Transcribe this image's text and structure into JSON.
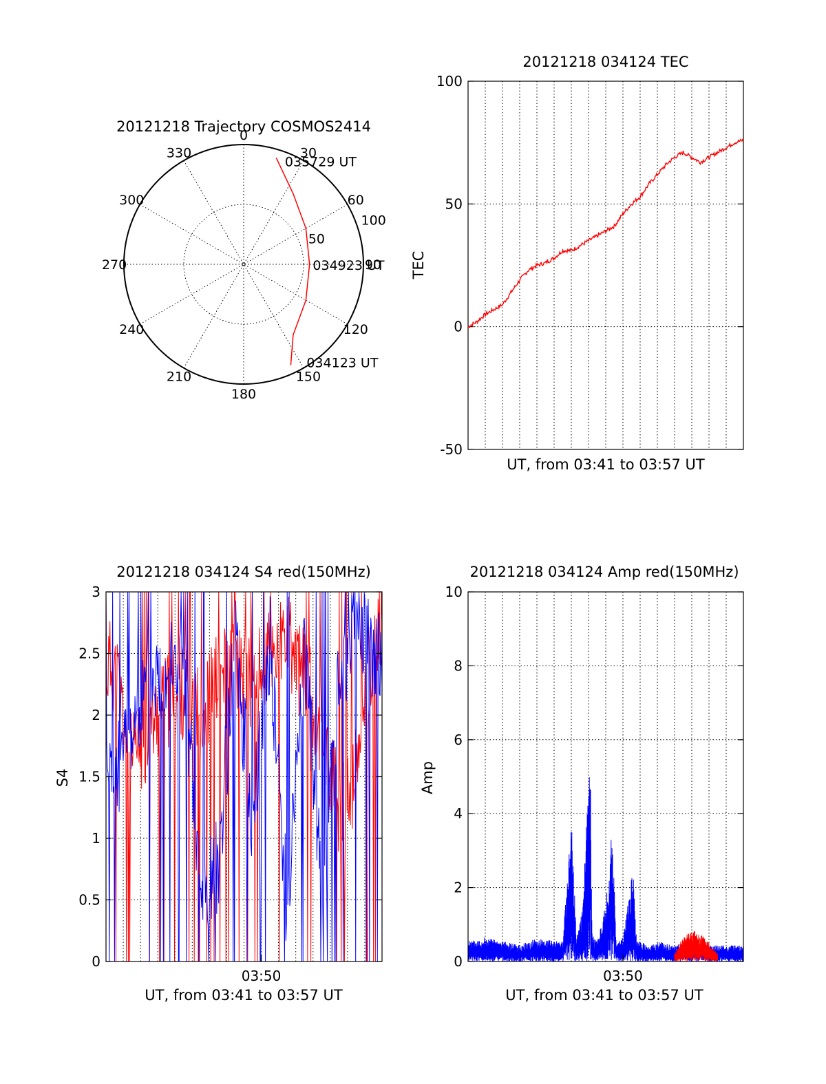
{
  "colors": {
    "red": "#ff0000",
    "blue": "#0000ff",
    "axis": "#000000"
  },
  "chart_data": [
    {
      "id": "polar",
      "type": "scatter",
      "title": "20121218 Trajectory COSMOS2414",
      "azimuth_labels": [
        "0",
        "30",
        "60",
        "90",
        "120",
        "150",
        "180",
        "210",
        "240",
        "270",
        "300",
        "330"
      ],
      "radial_labels": [
        "50",
        "100"
      ],
      "elevation_max": 100,
      "track": [
        {
          "az": 17,
          "r": 93
        },
        {
          "az": 35,
          "r": 72
        },
        {
          "az": 60,
          "r": 60
        },
        {
          "az": 90,
          "r": 55
        },
        {
          "az": 120,
          "r": 60
        },
        {
          "az": 145,
          "r": 72
        },
        {
          "az": 155,
          "r": 93
        }
      ],
      "annotations": [
        {
          "text": "035729 UT",
          "az": 23,
          "r": 94
        },
        {
          "text": "034923 UT",
          "az": 90,
          "r": 60
        },
        {
          "text": "034123 UT",
          "az": 146,
          "r": 98
        }
      ]
    },
    {
      "id": "tec",
      "type": "line",
      "title": "20121218 034124 TEC",
      "xlabel": "UT, from 03:41 to 03:57 UT",
      "ylabel": "TEC",
      "xlim": [
        0,
        16
      ],
      "ylim": [
        -50,
        100
      ],
      "yticks": [
        "100",
        "50",
        "0",
        "-50"
      ],
      "series": [
        {
          "color": "#ff0000",
          "x": [
            0,
            0.5,
            1,
            1.5,
            2,
            2.5,
            3,
            3.5,
            4,
            4.5,
            5,
            5.5,
            6,
            6.5,
            7,
            7.5,
            8,
            8.5,
            9,
            9.5,
            10,
            10.5,
            11,
            11.5,
            12,
            12.5,
            13,
            13.5,
            14,
            14.5,
            15,
            15.5,
            16
          ],
          "values": [
            0,
            2,
            5,
            7,
            9,
            14,
            19,
            23,
            25,
            26,
            28,
            31,
            31,
            33,
            35,
            37,
            39,
            41,
            46,
            50,
            53,
            58,
            62,
            66,
            69,
            71,
            69,
            67,
            69,
            71,
            73,
            75,
            76
          ]
        }
      ]
    },
    {
      "id": "s4",
      "type": "line",
      "title": "20121218 034124 S4 red(150MHz)",
      "xlabel": "UT, from 03:41 to 03:57 UT",
      "ylabel": "S4",
      "xlim": [
        0,
        16
      ],
      "ylim": [
        0,
        3
      ],
      "xticks": [
        {
          "x": 9,
          "label": "03:50"
        }
      ],
      "yticks": [
        "3",
        "2.5",
        "2",
        "1.5",
        "1",
        "0.5",
        "0"
      ],
      "series": [
        {
          "color": "#ff0000",
          "x": [
            0.5,
            1.5,
            2.5,
            3.5,
            4.5,
            5.5,
            6.5,
            7.5,
            8.5,
            9.5,
            10.5,
            11.5,
            12.5,
            13.5,
            14.5,
            15.5
          ],
          "values": [
            2.4,
            1.6,
            1.9,
            2.1,
            2.2,
            2.0,
            2.3,
            2.4,
            2.2,
            2.5,
            2.6,
            2.3,
            1.9,
            1.2,
            1.5,
            2.6
          ]
        },
        {
          "color": "#0000ff",
          "x": [
            0.5,
            1.5,
            2.5,
            3.5,
            4.5,
            5.5,
            6.5,
            7.5,
            8.5,
            9.5,
            10.5,
            11.5,
            12.5,
            13.5,
            14.5,
            15.5
          ],
          "values": [
            1.5,
            1.9,
            2.3,
            2.4,
            2.4,
            0.5,
            0.8,
            2.6,
            1.1,
            2.6,
            0.4,
            2.6,
            0.5,
            2.3,
            2.7,
            2.5
          ]
        }
      ]
    },
    {
      "id": "amp",
      "type": "line",
      "title": "20121218 034124 Amp red(150MHz)",
      "xlabel": "UT, from 03:41 to 03:57 UT",
      "ylabel": "Amp",
      "xlim": [
        0,
        16
      ],
      "ylim": [
        0,
        10
      ],
      "xticks": [
        {
          "x": 9,
          "label": "03:50"
        }
      ],
      "yticks": [
        "10",
        "8",
        "6",
        "4",
        "2",
        "0"
      ],
      "series": [
        {
          "color": "#0000ff",
          "x": [
            0,
            1,
            2,
            3,
            4,
            5,
            5.5,
            6,
            6.3,
            6.6,
            7,
            7.1,
            7.2,
            7.5,
            8,
            8.4,
            8.6,
            9,
            9.5,
            9.6,
            9.8,
            10,
            10.6,
            10.7,
            11,
            12,
            13,
            14,
            15,
            16
          ],
          "values": [
            0.5,
            0.6,
            0.5,
            0.4,
            0.6,
            0.5,
            0.5,
            3.6,
            0.6,
            1.2,
            4.5,
            5.3,
            0.7,
            0.5,
            1.4,
            3.5,
            0.5,
            0.6,
            2.1,
            2.1,
            0.5,
            0.5,
            0.4,
            0.4,
            0.5,
            0.4,
            0.5,
            0.4,
            0.4,
            0.4
          ]
        },
        {
          "color": "#ff0000",
          "x": [
            12,
            12.5,
            13,
            13.5,
            14,
            14.5
          ],
          "values": [
            0.2,
            0.6,
            0.8,
            0.7,
            0.5,
            0.2
          ]
        }
      ]
    }
  ]
}
